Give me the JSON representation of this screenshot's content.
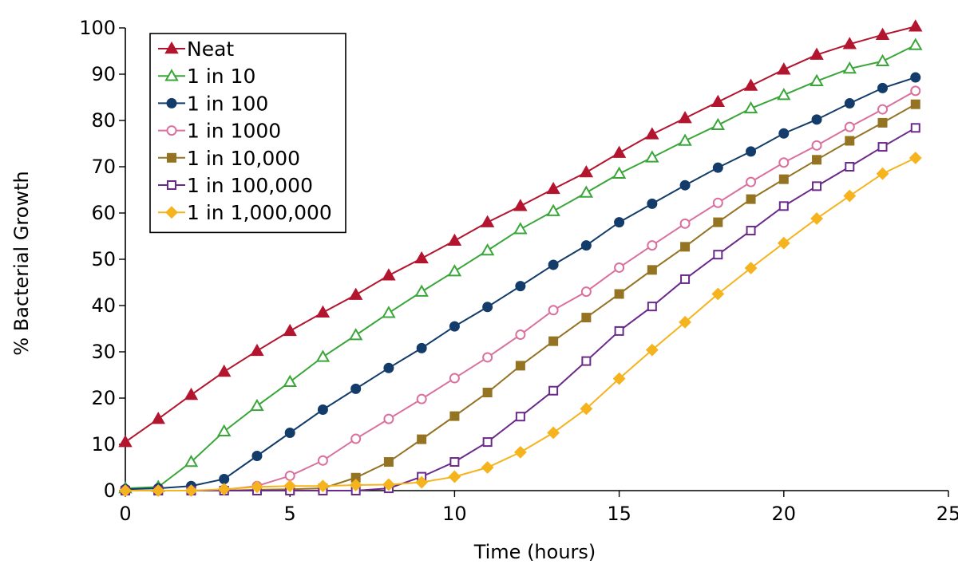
{
  "chart_data": {
    "type": "line",
    "title": "",
    "xlabel": "Time (hours)",
    "ylabel": "% Bacterial Growth",
    "xlim": [
      0,
      25
    ],
    "ylim": [
      0,
      100
    ],
    "xticks": [
      0,
      5,
      10,
      15,
      20,
      25
    ],
    "yticks": [
      0,
      10,
      20,
      30,
      40,
      50,
      60,
      70,
      80,
      90,
      100
    ],
    "grid": false,
    "legend_position": "top-left",
    "x": [
      0,
      1,
      2,
      3,
      4,
      5,
      6,
      7,
      8,
      9,
      10,
      11,
      12,
      13,
      14,
      15,
      16,
      17,
      18,
      19,
      20,
      21,
      22,
      23,
      24
    ],
    "series": [
      {
        "name": "Neat",
        "color": "#b3142e",
        "marker": "triangle",
        "filled": true,
        "values": [
          10.5,
          15.5,
          20.7,
          25.7,
          30.2,
          34.5,
          38.5,
          42.3,
          46.5,
          50.2,
          54,
          58,
          61.5,
          65.2,
          68.8,
          73,
          77,
          80.5,
          84,
          87.5,
          91,
          94.2,
          96.5,
          98.5,
          100.3
        ]
      },
      {
        "name": "1 in 10",
        "color": "#3aa63a",
        "marker": "triangle",
        "filled": false,
        "values": [
          0.5,
          0.8,
          6.2,
          12.8,
          18.3,
          23.5,
          28.9,
          33.6,
          38.4,
          43,
          47.4,
          51.9,
          56.5,
          60.4,
          64.4,
          68.5,
          72,
          75.6,
          79,
          82.6,
          85.5,
          88.5,
          91.2,
          92.8,
          96.3
        ]
      },
      {
        "name": "1 in 100",
        "color": "#133c6a",
        "marker": "circle",
        "filled": true,
        "values": [
          0.3,
          0.5,
          1,
          2.5,
          7.5,
          12.5,
          17.5,
          22,
          26.5,
          30.8,
          35.5,
          39.7,
          44.2,
          48.8,
          53,
          58,
          62,
          66,
          69.8,
          73.3,
          77.2,
          80.2,
          83.7,
          87,
          89.3
        ]
      },
      {
        "name": "1 in 1000",
        "color": "#d9709e",
        "marker": "circle",
        "filled": false,
        "values": [
          0,
          0,
          0,
          0.2,
          1,
          3.2,
          6.5,
          11.2,
          15.5,
          19.8,
          24.3,
          28.8,
          33.7,
          39,
          43,
          48.2,
          53,
          57.7,
          62.2,
          66.7,
          70.9,
          74.6,
          78.6,
          82.4,
          86.4
        ]
      },
      {
        "name": "1 in 10,000",
        "color": "#947423",
        "marker": "square",
        "filled": true,
        "values": [
          0,
          0,
          0,
          0,
          0.2,
          0.3,
          0.5,
          2.8,
          6.2,
          11.1,
          16.1,
          21.2,
          27,
          32.3,
          37.4,
          42.5,
          47.7,
          52.7,
          58,
          63,
          67.3,
          71.5,
          75.6,
          79.5,
          83.5
        ]
      },
      {
        "name": "1 in 100,000",
        "color": "#6a2a8a",
        "marker": "square",
        "filled": false,
        "values": [
          0,
          0,
          0,
          0,
          0,
          0,
          0,
          0,
          0.5,
          3,
          6.2,
          10.5,
          16,
          21.6,
          28,
          34.5,
          39.8,
          45.7,
          51,
          56.2,
          61.5,
          65.8,
          70,
          74.3,
          78.4
        ]
      },
      {
        "name": "1 in 1,000,000",
        "color": "#f5b31e",
        "marker": "diamond",
        "filled": true,
        "values": [
          0,
          0,
          0,
          0.3,
          0.8,
          1,
          1,
          1.2,
          1.3,
          1.8,
          3,
          5,
          8.3,
          12.5,
          17.7,
          24.2,
          30.4,
          36.4,
          42.5,
          48.1,
          53.5,
          58.8,
          63.7,
          68.5,
          71.9
        ]
      }
    ]
  }
}
